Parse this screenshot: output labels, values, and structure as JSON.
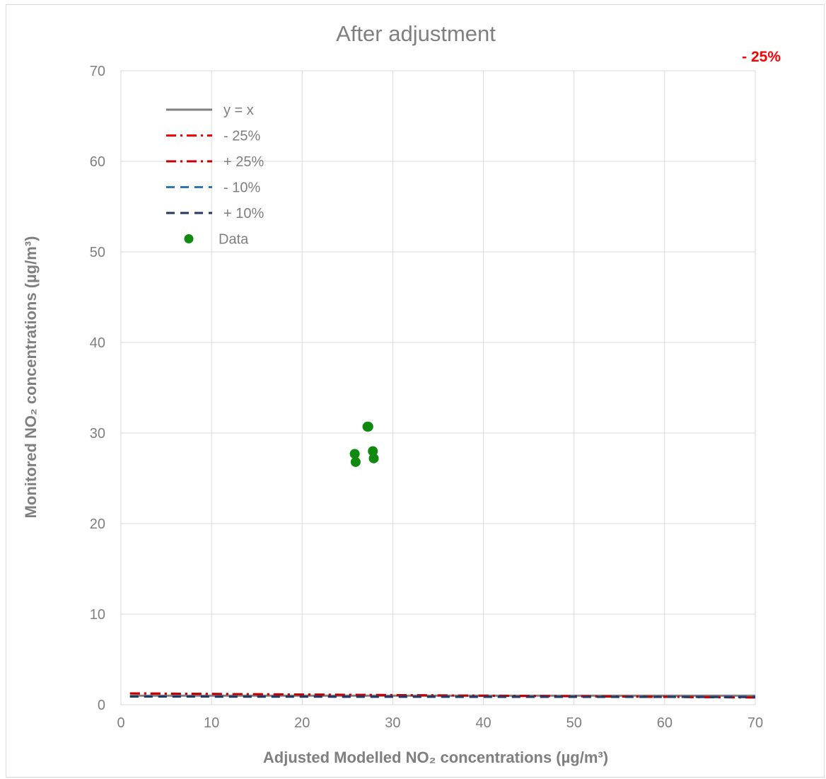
{
  "chart_data": {
    "type": "scatter",
    "title": "After adjustment",
    "annotation": "- 25%",
    "xlabel": "Adjusted Modelled NO₂ concentrations (µg/m³)",
    "ylabel": "Monitored NO₂ concentrations (µg/m³)",
    "xlim": [
      0,
      70
    ],
    "ylim": [
      0,
      70
    ],
    "xticks": [
      0,
      10,
      20,
      30,
      40,
      50,
      60,
      70
    ],
    "yticks": [
      0,
      10,
      20,
      30,
      40,
      50,
      60,
      70
    ],
    "grid": true,
    "legend_position": "top-left",
    "series": [
      {
        "name": "y = x",
        "kind": "line",
        "style": "solid",
        "color": "#7f7f7f",
        "x": [
          1,
          70
        ],
        "y": [
          1,
          1
        ]
      },
      {
        "name": "- 25%",
        "kind": "line",
        "style": "dashdot",
        "color": "#ff0000",
        "x": [
          1,
          70
        ],
        "y": [
          1.25,
          0.8
        ]
      },
      {
        "name": "+ 25%",
        "kind": "line",
        "style": "dashdot",
        "color": "#c00000",
        "x": [
          1,
          70
        ],
        "y": [
          1.25,
          0.8
        ]
      },
      {
        "name": "- 10%",
        "kind": "line",
        "style": "dashed",
        "color": "#2e75b6",
        "x": [
          1,
          70
        ],
        "y": [
          0.9,
          0.85
        ]
      },
      {
        "name": "+ 10%",
        "kind": "line",
        "style": "dashed",
        "color": "#203864",
        "x": [
          1,
          70
        ],
        "y": [
          0.9,
          0.85
        ]
      },
      {
        "name": "Data",
        "kind": "points",
        "color": "#0f8a0f",
        "points": [
          [
            27.3,
            30.7
          ],
          [
            27.2,
            30.7
          ],
          [
            25.8,
            27.7
          ],
          [
            25.9,
            26.8
          ],
          [
            27.8,
            28.0
          ],
          [
            27.9,
            27.2
          ]
        ]
      }
    ]
  }
}
